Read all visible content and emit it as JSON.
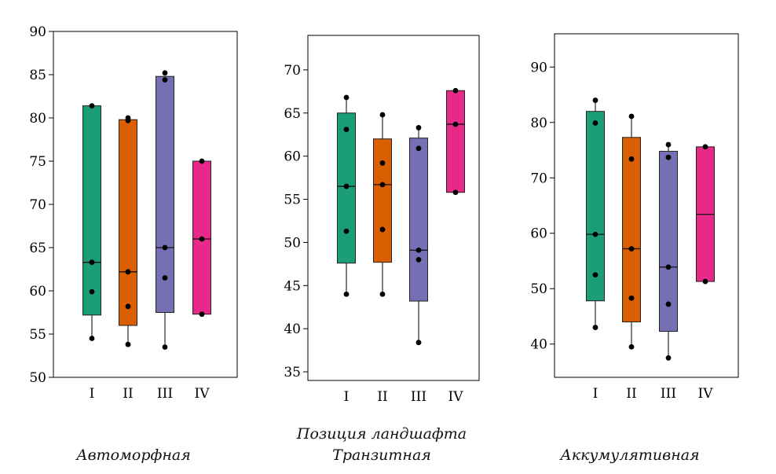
{
  "xlabel": "Позиция ландшафта",
  "colors": {
    "I": "#1b9e77",
    "II": "#d95f02",
    "III": "#7570b3",
    "IV": "#e7298a"
  },
  "chart_data": [
    {
      "type": "box",
      "title": "Автоморфная",
      "categories": [
        "I",
        "II",
        "III",
        "IV"
      ],
      "ylim": [
        50,
        90
      ],
      "yticks": [
        50,
        55,
        60,
        65,
        70,
        75,
        80,
        85,
        90
      ],
      "boxes": [
        {
          "category": "I",
          "whisker_low": 54.5,
          "q1": 57.2,
          "median": 63.3,
          "q3": 81.4,
          "whisker_high": 81.4,
          "points": [
            54.5,
            59.9,
            63.3,
            81.4
          ]
        },
        {
          "category": "II",
          "whisker_low": 53.8,
          "q1": 56.0,
          "median": 62.2,
          "q3": 79.8,
          "whisker_high": 79.8,
          "points": [
            53.8,
            58.2,
            62.2,
            79.7,
            80.0
          ]
        },
        {
          "category": "III",
          "whisker_low": 53.5,
          "q1": 57.5,
          "median": 65.0,
          "q3": 84.8,
          "whisker_high": 84.8,
          "points": [
            53.5,
            61.5,
            65.0,
            84.4,
            85.2
          ]
        },
        {
          "category": "IV",
          "whisker_low": 57.3,
          "q1": 57.3,
          "median": 66.0,
          "q3": 75.0,
          "whisker_high": 75.0,
          "points": [
            57.3,
            66.0,
            75.0
          ]
        }
      ]
    },
    {
      "type": "box",
      "title": "Транзитная",
      "categories": [
        "I",
        "II",
        "III",
        "IV"
      ],
      "ylim": [
        34,
        74
      ],
      "yticks": [
        35,
        40,
        45,
        50,
        55,
        60,
        65,
        70
      ],
      "boxes": [
        {
          "category": "I",
          "whisker_low": 44.0,
          "q1": 47.6,
          "median": 56.5,
          "q3": 65.0,
          "whisker_high": 66.8,
          "points": [
            44.0,
            51.3,
            56.5,
            63.1,
            66.8
          ]
        },
        {
          "category": "II",
          "whisker_low": 44.0,
          "q1": 47.7,
          "median": 56.7,
          "q3": 62.0,
          "whisker_high": 64.8,
          "points": [
            44.0,
            51.5,
            56.7,
            59.2,
            64.8
          ]
        },
        {
          "category": "III",
          "whisker_low": 38.4,
          "q1": 43.2,
          "median": 49.1,
          "q3": 62.1,
          "whisker_high": 63.3,
          "points": [
            38.4,
            48.0,
            49.1,
            60.9,
            63.3
          ]
        },
        {
          "category": "IV",
          "whisker_low": 55.8,
          "q1": 55.8,
          "median": 63.7,
          "q3": 67.6,
          "whisker_high": 67.6,
          "points": [
            55.8,
            63.7,
            67.6
          ]
        }
      ]
    },
    {
      "type": "box",
      "title": "Аккумулятивная",
      "categories": [
        "I",
        "II",
        "III",
        "IV"
      ],
      "ylim": [
        34,
        96
      ],
      "yticks": [
        40,
        50,
        60,
        70,
        80,
        90
      ],
      "boxes": [
        {
          "category": "I",
          "whisker_low": 43.0,
          "q1": 47.8,
          "median": 59.8,
          "q3": 82.0,
          "whisker_high": 84.0,
          "points": [
            43.0,
            52.5,
            59.8,
            79.9,
            84.0
          ]
        },
        {
          "category": "II",
          "whisker_low": 39.5,
          "q1": 44.0,
          "median": 57.2,
          "q3": 77.3,
          "whisker_high": 81.1,
          "points": [
            39.5,
            48.3,
            57.2,
            73.4,
            81.1
          ]
        },
        {
          "category": "III",
          "whisker_low": 37.5,
          "q1": 42.3,
          "median": 53.9,
          "q3": 74.8,
          "whisker_high": 76.0,
          "points": [
            37.5,
            47.2,
            53.9,
            73.7,
            76.0
          ]
        },
        {
          "category": "IV",
          "whisker_low": 51.3,
          "q1": 51.3,
          "median": 63.4,
          "q3": 75.6,
          "whisker_high": 75.6,
          "points": [
            51.3,
            75.6
          ]
        }
      ]
    }
  ]
}
